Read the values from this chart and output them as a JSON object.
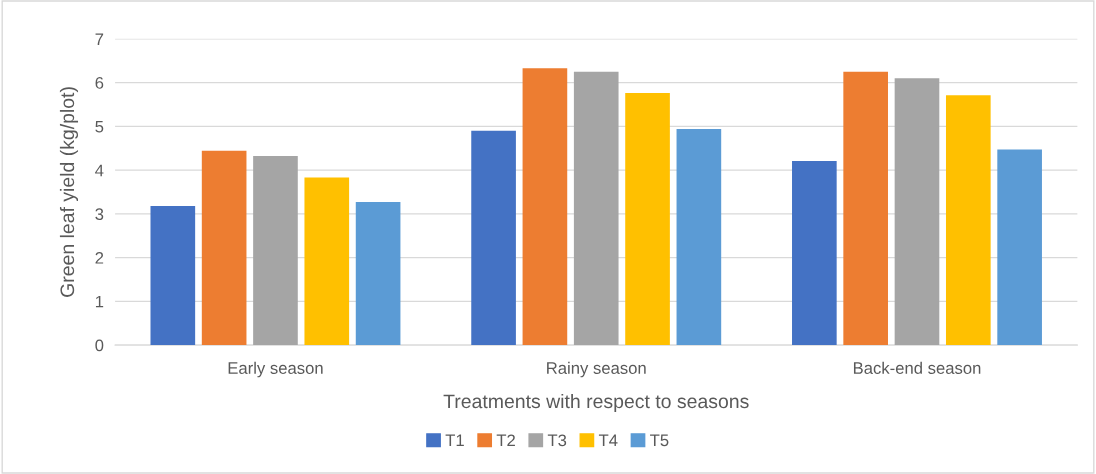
{
  "chart_data": {
    "type": "bar",
    "xlabel": "Treatments with respect to seasons",
    "ylabel": "Green leaf yield (kg/plot)",
    "categories": [
      "Early season",
      "Rainy season",
      "Back-end season"
    ],
    "series": [
      {
        "name": "T1",
        "color": "#4472c4",
        "values": [
          3.18,
          4.9,
          4.21
        ]
      },
      {
        "name": "T2",
        "color": "#ed7d31",
        "values": [
          4.44,
          6.33,
          6.25
        ]
      },
      {
        "name": "T3",
        "color": "#a5a5a5",
        "values": [
          4.32,
          6.25,
          6.1
        ]
      },
      {
        "name": "T4",
        "color": "#ffc000",
        "values": [
          3.83,
          5.76,
          5.71
        ]
      },
      {
        "name": "T5",
        "color": "#5b9bd5",
        "values": [
          3.27,
          4.94,
          4.47
        ]
      }
    ],
    "ylim": [
      0,
      7
    ],
    "yticks": [
      0,
      1,
      2,
      3,
      4,
      5,
      6,
      7
    ],
    "grid": "y",
    "legend": "bottom"
  }
}
